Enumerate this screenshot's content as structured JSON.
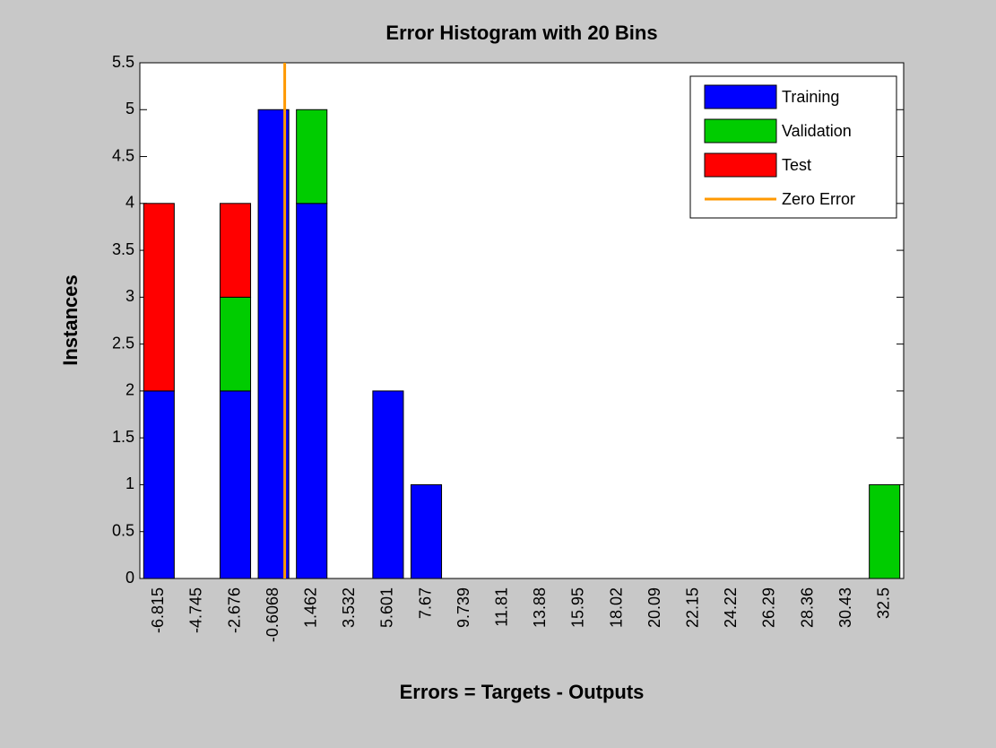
{
  "chart_data": {
    "type": "bar",
    "stacked": true,
    "title": "Error Histogram with 20 Bins",
    "x_label": "Errors = Targets - Outputs",
    "y_label": "Instances",
    "categories": [
      "-6.815",
      "-4.745",
      "-2.676",
      "-0.6068",
      "1.462",
      "3.532",
      "5.601",
      "7.67",
      "9.739",
      "11.81",
      "13.88",
      "15.95",
      "18.02",
      "20.09",
      "22.15",
      "24.22",
      "26.29",
      "28.36",
      "30.43",
      "32.5"
    ],
    "series": [
      {
        "name": "Training",
        "color": "#0000ff",
        "values": [
          2,
          0,
          2,
          5,
          4,
          0,
          2,
          1,
          0,
          0,
          0,
          0,
          0,
          0,
          0,
          0,
          0,
          0,
          0,
          0
        ]
      },
      {
        "name": "Validation",
        "color": "#00cc00",
        "values": [
          0,
          0,
          1,
          0,
          1,
          0,
          0,
          0,
          0,
          0,
          0,
          0,
          0,
          0,
          0,
          0,
          0,
          0,
          0,
          1
        ]
      },
      {
        "name": "Test",
        "color": "#ff0000",
        "values": [
          2,
          0,
          1,
          0,
          0,
          0,
          0,
          0,
          0,
          0,
          0,
          0,
          0,
          0,
          0,
          0,
          0,
          0,
          0,
          0
        ]
      }
    ],
    "zero_line": {
      "name": "Zero Error",
      "color": "#ff9900",
      "x": 0
    },
    "ylim": [
      0,
      5.5
    ],
    "yticks": [
      0,
      0.5,
      1,
      1.5,
      2,
      2.5,
      3,
      3.5,
      4,
      4.5,
      5,
      5.5
    ],
    "grid": false,
    "legend": "northeast"
  }
}
